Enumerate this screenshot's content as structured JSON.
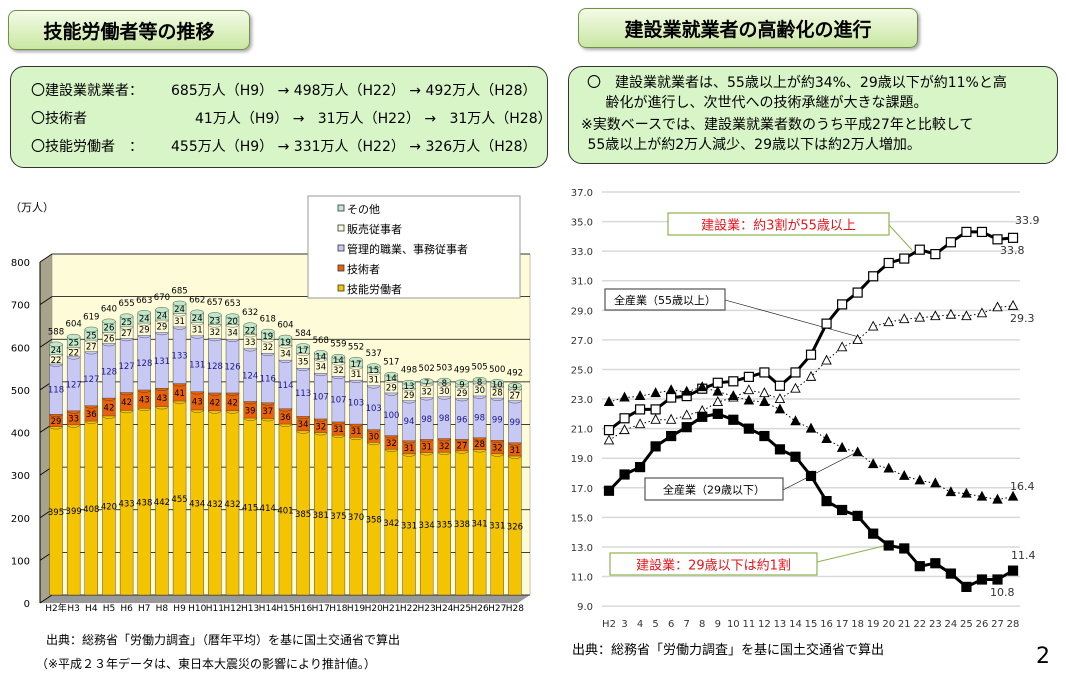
{
  "left": {
    "title": "技能労働者等の推移",
    "summary": [
      {
        "label": "〇建設業就業者：",
        "text": "685万人（H9） → 498万人（H22） → 492万人（H28）"
      },
      {
        "label": "〇技術者",
        "text": "41万人（H9） →   31万人（H22） →   31万人（H28）"
      },
      {
        "label": "〇技能労働者　：",
        "text": "455万人（H9） → 331万人（H22） → 326万人（H28）"
      }
    ],
    "source": "出典：総務省「労働力調査」（暦年平均）を基に国土交通省で算出",
    "note": "（※平成２３年データは、東日本大震災の影響により推計値。）"
  },
  "right": {
    "title": "建設業就業者の高齢化の進行",
    "summary": [
      "〇　建設業就業者は、55歳以上が約34%、29歳以下が約11%と高",
      "　 齢化が進行し、次世代への技術承継が大きな課題。",
      "※実数ベースでは、建設業就業者数のうち平成27年と比較して",
      " 55歳以上が約2万人減少、29歳以下は約2万人増加。"
    ],
    "source": "出典：総務省「労働力調査」を基に国土交通省で算出"
  },
  "page_number": "2",
  "chart_data": [
    {
      "type": "bar",
      "stacked": true,
      "ylabel": "（万人）",
      "ylim": [
        0,
        800
      ],
      "yticks": [
        "0",
        "100",
        "200",
        "300",
        "400",
        "500",
        "600",
        "700",
        "800"
      ],
      "grid": true,
      "legend": "top-right",
      "categories": [
        "H2年",
        "H3",
        "H4",
        "H5",
        "H6",
        "H7",
        "H8",
        "H9",
        "H10",
        "H11",
        "H12",
        "H13",
        "H14",
        "H15",
        "H16",
        "H17",
        "H18",
        "H19",
        "H20",
        "H21",
        "H22",
        "H23",
        "H24",
        "H25",
        "H26",
        "H27",
        "H28"
      ],
      "series": [
        {
          "name": "技能労働者",
          "color": "#f5c400",
          "values": [
            395,
            399,
            408,
            420,
            433,
            438,
            442,
            455,
            434,
            432,
            432,
            415,
            414,
            401,
            385,
            381,
            375,
            370,
            358,
            342,
            331,
            334,
            335,
            338,
            341,
            331,
            326
          ]
        },
        {
          "name": "技術者",
          "color": "#e8620c",
          "values": [
            29,
            33,
            36,
            42,
            42,
            43,
            43,
            41,
            43,
            42,
            42,
            39,
            37,
            36,
            34,
            32,
            31,
            31,
            30,
            32,
            31,
            31,
            32,
            27,
            28,
            32,
            31
          ]
        },
        {
          "name": "管理的職業、事務従事者",
          "color": "#c8c8f4",
          "values": [
            118,
            127,
            127,
            128,
            127,
            128,
            131,
            133,
            131,
            128,
            126,
            124,
            116,
            114,
            113,
            107,
            107,
            103,
            103,
            100,
            94,
            98,
            98,
            96,
            98,
            99,
            99
          ]
        },
        {
          "name": "販売従事者",
          "color": "#fbf8d4",
          "values": [
            22,
            22,
            27,
            26,
            27,
            29,
            29,
            31,
            31,
            32,
            34,
            33,
            32,
            34,
            35,
            34,
            32,
            31,
            31,
            29,
            29,
            32,
            30,
            29,
            30,
            28,
            27
          ]
        },
        {
          "name": "その他",
          "color": "#bfe8c8",
          "values": [
            24,
            25,
            25,
            26,
            25,
            24,
            24,
            24,
            24,
            23,
            20,
            22,
            19,
            19,
            17,
            14,
            14,
            17,
            15,
            14,
            13,
            7,
            8,
            9,
            8,
            10,
            9
          ]
        }
      ],
      "totals": [
        588,
        604,
        619,
        640,
        655,
        663,
        670,
        685,
        662,
        657,
        653,
        632,
        618,
        604,
        584,
        568,
        559,
        552,
        537,
        517,
        498,
        502,
        503,
        499,
        505,
        500,
        492
      ]
    },
    {
      "type": "line",
      "ylim": [
        9,
        37
      ],
      "yticks": [
        "9.0",
        "11.0",
        "13.0",
        "15.0",
        "17.0",
        "19.0",
        "21.0",
        "23.0",
        "25.0",
        "27.0",
        "29.0",
        "31.0",
        "33.0",
        "35.0",
        "37.0"
      ],
      "grid": true,
      "categories": [
        "H2",
        "3",
        "4",
        "5",
        "6",
        "7",
        "8",
        "9",
        "10",
        "11",
        "12",
        "13",
        "14",
        "15",
        "16",
        "17",
        "18",
        "19",
        "20",
        "21",
        "22",
        "23",
        "24",
        "25",
        "26",
        "27",
        "28"
      ],
      "series": [
        {
          "name": "建設業（55歳以上）",
          "marker": "open-square",
          "style": "solid-thick",
          "values": [
            20.9,
            21.7,
            22.3,
            22.3,
            23.1,
            23.2,
            23.7,
            24.1,
            24.2,
            24.5,
            24.8,
            23.9,
            24.8,
            26.0,
            28.1,
            29.4,
            30.2,
            31.3,
            32.2,
            32.5,
            33.1,
            32.8,
            33.6,
            34.3,
            34.3,
            33.8,
            33.9
          ]
        },
        {
          "name": "全産業（55歳以上）",
          "marker": "open-triangle",
          "style": "dotted",
          "values": [
            20.2,
            20.9,
            21.3,
            21.6,
            21.6,
            21.9,
            22.2,
            22.8,
            23.1,
            23.6,
            23.4,
            23.0,
            23.7,
            24.5,
            25.6,
            26.5,
            27.0,
            27.9,
            28.2,
            28.4,
            28.5,
            28.6,
            28.7,
            28.6,
            28.8,
            29.2,
            29.3
          ]
        },
        {
          "name": "全産業（29歳以下）",
          "marker": "filled-triangle",
          "style": "dotted",
          "values": [
            22.8,
            23.1,
            23.2,
            23.4,
            23.6,
            23.5,
            23.8,
            23.5,
            23.2,
            22.9,
            22.8,
            22.3,
            21.5,
            21.0,
            20.3,
            19.7,
            19.4,
            18.6,
            18.3,
            17.8,
            17.5,
            17.3,
            16.7,
            16.6,
            16.4,
            16.2,
            16.4
          ]
        },
        {
          "name": "建設業（29歳以下）",
          "marker": "filled-square",
          "style": "solid-thick",
          "values": [
            16.8,
            17.9,
            18.4,
            19.8,
            20.5,
            21.1,
            21.8,
            22.0,
            21.6,
            21.0,
            20.5,
            19.6,
            19.1,
            17.8,
            16.1,
            15.5,
            15.1,
            13.9,
            13.1,
            12.9,
            11.7,
            11.9,
            11.2,
            10.3,
            10.8,
            10.8,
            11.4
          ]
        }
      ],
      "data_labels": [
        "33.9",
        "33.8",
        "29.3",
        "16.4",
        "11.4",
        "10.8"
      ],
      "annotations": [
        "建設業：約3割が55歳以上",
        "全産業（55歳以上）",
        "全産業（29歳以下）",
        "建設業：29歳以下は約1割"
      ]
    }
  ]
}
